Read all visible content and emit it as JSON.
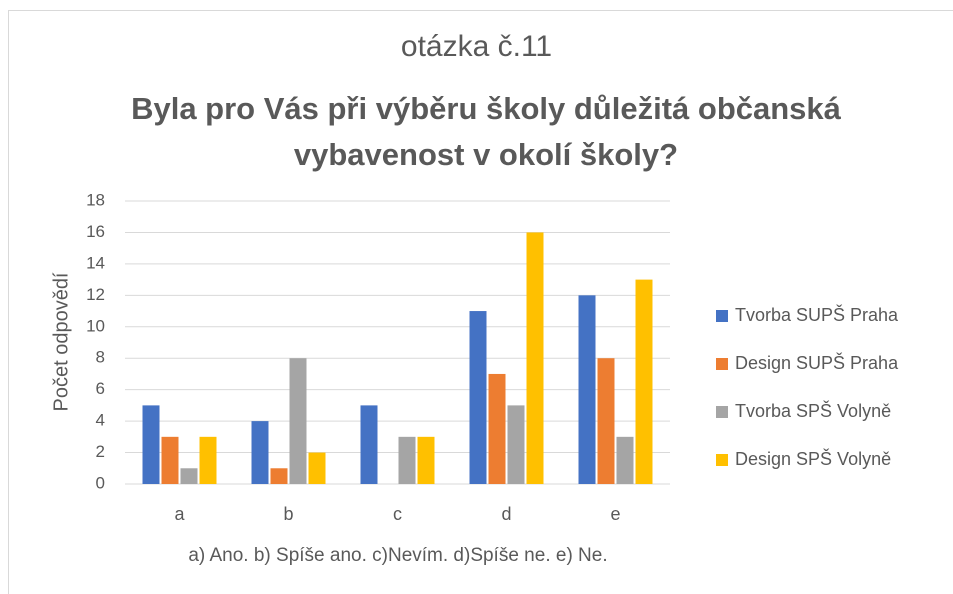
{
  "chart_data": {
    "type": "bar",
    "title": "otázka č.11",
    "subtitle": "Byla pro Vás při výběru školy důležitá občanská vybavenost v okolí školy?",
    "xlabel": "a) Ano. b) Spíše ano. c)Nevím. d)Spíše ne. e) Ne.",
    "ylabel": "Počet odpovědí",
    "categories": [
      "a",
      "b",
      "c",
      "d",
      "e"
    ],
    "series": [
      {
        "name": "Tvorba SUPŠ Praha",
        "color": "#4472c4",
        "values": [
          5,
          4,
          5,
          11,
          12
        ]
      },
      {
        "name": "Design SUPŠ Praha",
        "color": "#ed7d31",
        "values": [
          3,
          1,
          0,
          7,
          8
        ]
      },
      {
        "name": "Tvorba SPŠ Volyně",
        "color": "#a5a5a5",
        "values": [
          1,
          8,
          3,
          5,
          3
        ]
      },
      {
        "name": "Design SPŠ Volyně",
        "color": "#ffc000",
        "values": [
          3,
          2,
          3,
          16,
          13
        ]
      }
    ],
    "ylim": [
      0,
      18
    ],
    "yticks": [
      0,
      2,
      4,
      6,
      8,
      10,
      12,
      14,
      16,
      18
    ],
    "grid": true,
    "legend": "right"
  }
}
